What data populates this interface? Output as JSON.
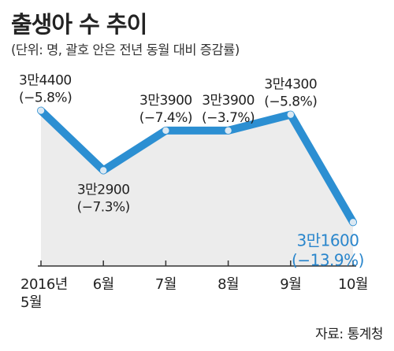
{
  "chart_data": {
    "type": "line",
    "title": "출생아 수 추이",
    "subtitle": "(단위: 명, 괄호 안은 전년 동월 대비 증감률)",
    "categories": [
      [
        "2016년",
        "5월"
      ],
      [
        "6월"
      ],
      [
        "7월"
      ],
      [
        "8월"
      ],
      [
        "9월"
      ],
      [
        "10월"
      ]
    ],
    "values": [
      34400,
      32900,
      33900,
      33900,
      34300,
      31600
    ],
    "value_labels": [
      "3만4400",
      "3만2900",
      "3만3900",
      "3만3900",
      "3만4300",
      "3만1600"
    ],
    "change_labels": [
      "(−5.8%)",
      "(−7.3%)",
      "(−7.4%)",
      "(−3.7%)",
      "(−5.8%)",
      "(−13.9%)"
    ],
    "highlight_index": 5,
    "ylim": [
      30500,
      35300
    ],
    "grid": false,
    "source": "자료: 통계청",
    "colors": {
      "line": "#2c8fd2",
      "marker": "#dbe8f2",
      "fill": "#ececec",
      "highlight_text": "#2a86cc",
      "axis": "#333333",
      "text": "#222222"
    }
  }
}
